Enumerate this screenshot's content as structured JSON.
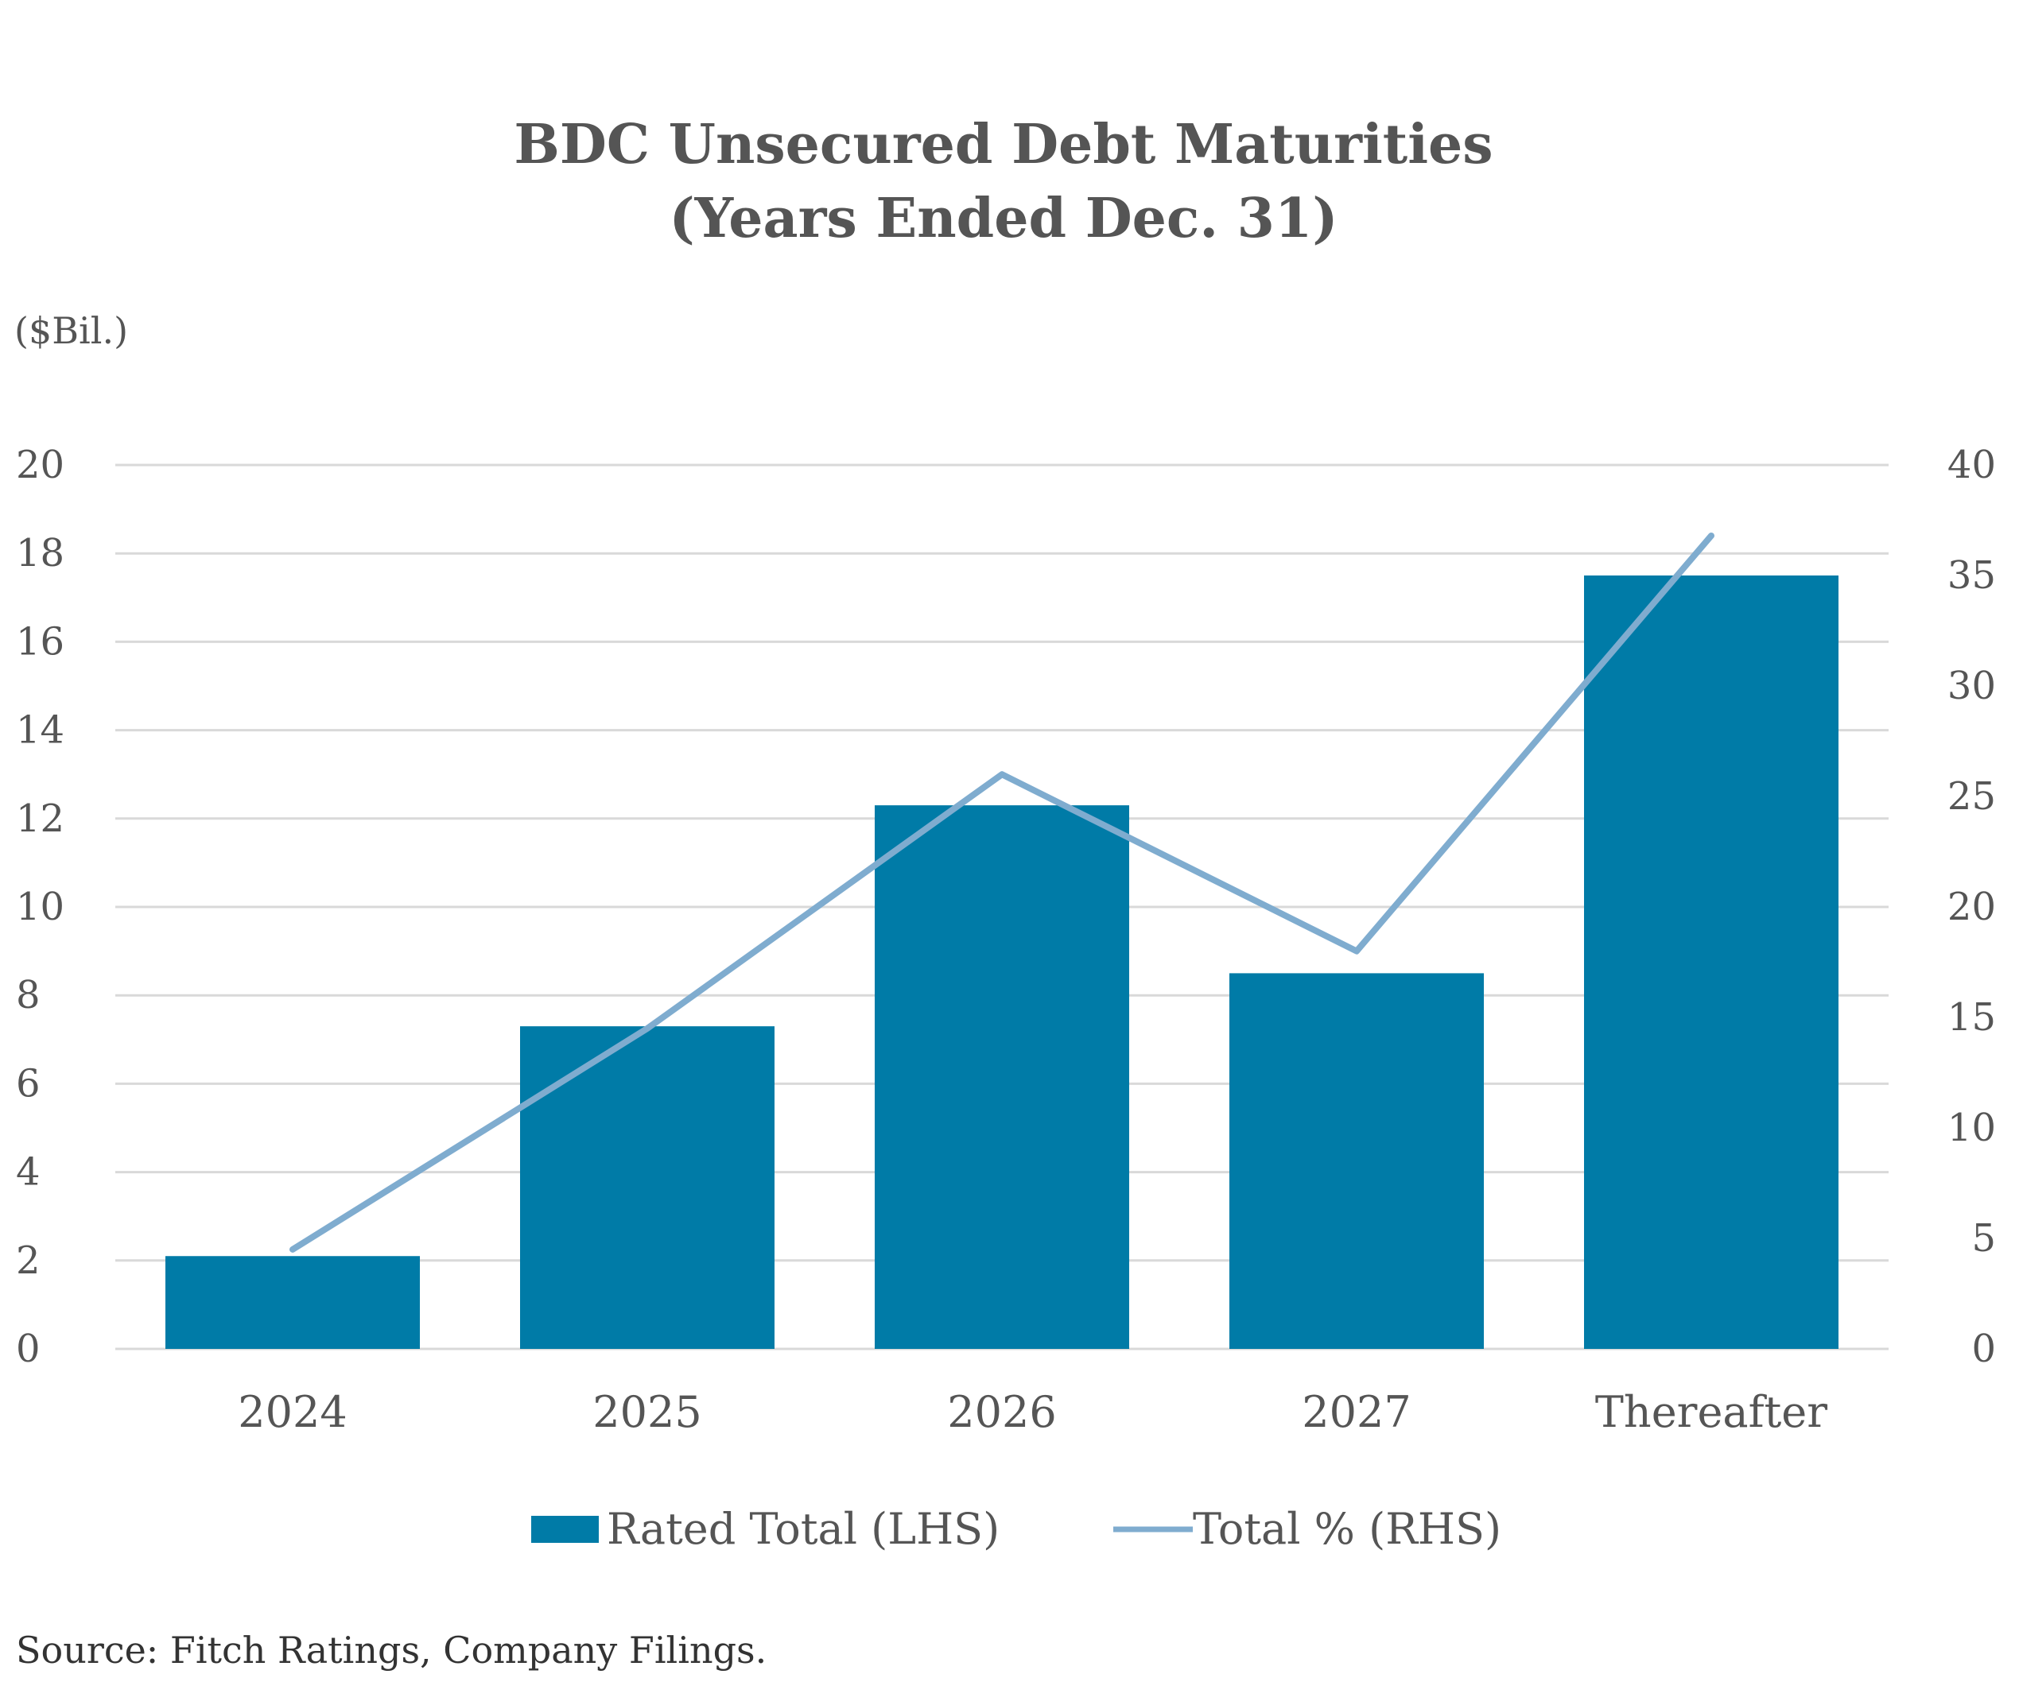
{
  "colors": {
    "bar": "#007BA7",
    "line": "#7FACCF",
    "grid": "#D9D9D9",
    "text": "#555555"
  },
  "chart_data": {
    "type": "bar",
    "title_lines": [
      "BDC Unsecured Debt Maturities",
      "(Years Ended Dec. 31)"
    ],
    "unit_label": "($Bil.)",
    "categories": [
      "2024",
      "2025",
      "2026",
      "2027",
      "Thereafter"
    ],
    "series": [
      {
        "name": "Rated Total  (LHS)",
        "type": "bar",
        "axis": "left",
        "values": [
          2.1,
          7.3,
          12.3,
          8.5,
          17.5
        ]
      },
      {
        "name": "Total  % (RHS)",
        "type": "line",
        "axis": "right",
        "values": [
          4.5,
          14.5,
          26.0,
          18.0,
          36.8
        ]
      }
    ],
    "y_left": {
      "min": 0,
      "max": 20,
      "ticks": [
        "0",
        "2",
        "4",
        "6",
        "8",
        "10",
        "12",
        "14",
        "16",
        "18",
        "20"
      ]
    },
    "y_right": {
      "min": 0,
      "max": 40,
      "ticks": [
        "0",
        "5",
        "10",
        "15",
        "20",
        "25",
        "30",
        "35",
        "40"
      ]
    },
    "grid": true,
    "legend_position": "bottom",
    "source": "Source: Fitch Ratings, Company Filings."
  }
}
